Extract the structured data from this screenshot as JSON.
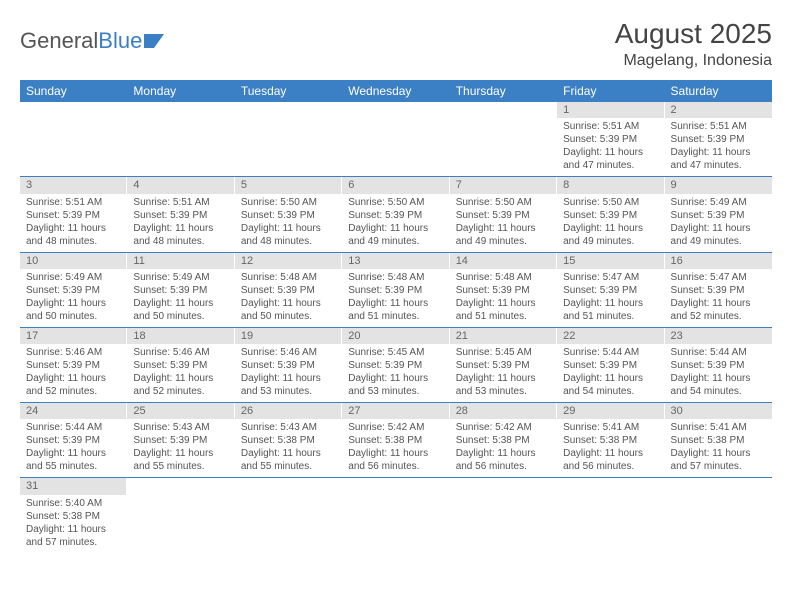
{
  "logo": {
    "text1": "General",
    "text2": "Blue"
  },
  "title": "August 2025",
  "location": "Magelang, Indonesia",
  "colors": {
    "header_bg": "#3b7fc4",
    "header_text": "#ffffff",
    "daynum_bg": "#e3e3e3",
    "text": "#555555",
    "divider": "#3b7fc4"
  },
  "day_headers": [
    "Sunday",
    "Monday",
    "Tuesday",
    "Wednesday",
    "Thursday",
    "Friday",
    "Saturday"
  ],
  "weeks": [
    [
      {
        "n": "",
        "sr": "",
        "ss": "",
        "dl": ""
      },
      {
        "n": "",
        "sr": "",
        "ss": "",
        "dl": ""
      },
      {
        "n": "",
        "sr": "",
        "ss": "",
        "dl": ""
      },
      {
        "n": "",
        "sr": "",
        "ss": "",
        "dl": ""
      },
      {
        "n": "",
        "sr": "",
        "ss": "",
        "dl": ""
      },
      {
        "n": "1",
        "sr": "Sunrise: 5:51 AM",
        "ss": "Sunset: 5:39 PM",
        "dl": "Daylight: 11 hours and 47 minutes."
      },
      {
        "n": "2",
        "sr": "Sunrise: 5:51 AM",
        "ss": "Sunset: 5:39 PM",
        "dl": "Daylight: 11 hours and 47 minutes."
      }
    ],
    [
      {
        "n": "3",
        "sr": "Sunrise: 5:51 AM",
        "ss": "Sunset: 5:39 PM",
        "dl": "Daylight: 11 hours and 48 minutes."
      },
      {
        "n": "4",
        "sr": "Sunrise: 5:51 AM",
        "ss": "Sunset: 5:39 PM",
        "dl": "Daylight: 11 hours and 48 minutes."
      },
      {
        "n": "5",
        "sr": "Sunrise: 5:50 AM",
        "ss": "Sunset: 5:39 PM",
        "dl": "Daylight: 11 hours and 48 minutes."
      },
      {
        "n": "6",
        "sr": "Sunrise: 5:50 AM",
        "ss": "Sunset: 5:39 PM",
        "dl": "Daylight: 11 hours and 49 minutes."
      },
      {
        "n": "7",
        "sr": "Sunrise: 5:50 AM",
        "ss": "Sunset: 5:39 PM",
        "dl": "Daylight: 11 hours and 49 minutes."
      },
      {
        "n": "8",
        "sr": "Sunrise: 5:50 AM",
        "ss": "Sunset: 5:39 PM",
        "dl": "Daylight: 11 hours and 49 minutes."
      },
      {
        "n": "9",
        "sr": "Sunrise: 5:49 AM",
        "ss": "Sunset: 5:39 PM",
        "dl": "Daylight: 11 hours and 49 minutes."
      }
    ],
    [
      {
        "n": "10",
        "sr": "Sunrise: 5:49 AM",
        "ss": "Sunset: 5:39 PM",
        "dl": "Daylight: 11 hours and 50 minutes."
      },
      {
        "n": "11",
        "sr": "Sunrise: 5:49 AM",
        "ss": "Sunset: 5:39 PM",
        "dl": "Daylight: 11 hours and 50 minutes."
      },
      {
        "n": "12",
        "sr": "Sunrise: 5:48 AM",
        "ss": "Sunset: 5:39 PM",
        "dl": "Daylight: 11 hours and 50 minutes."
      },
      {
        "n": "13",
        "sr": "Sunrise: 5:48 AM",
        "ss": "Sunset: 5:39 PM",
        "dl": "Daylight: 11 hours and 51 minutes."
      },
      {
        "n": "14",
        "sr": "Sunrise: 5:48 AM",
        "ss": "Sunset: 5:39 PM",
        "dl": "Daylight: 11 hours and 51 minutes."
      },
      {
        "n": "15",
        "sr": "Sunrise: 5:47 AM",
        "ss": "Sunset: 5:39 PM",
        "dl": "Daylight: 11 hours and 51 minutes."
      },
      {
        "n": "16",
        "sr": "Sunrise: 5:47 AM",
        "ss": "Sunset: 5:39 PM",
        "dl": "Daylight: 11 hours and 52 minutes."
      }
    ],
    [
      {
        "n": "17",
        "sr": "Sunrise: 5:46 AM",
        "ss": "Sunset: 5:39 PM",
        "dl": "Daylight: 11 hours and 52 minutes."
      },
      {
        "n": "18",
        "sr": "Sunrise: 5:46 AM",
        "ss": "Sunset: 5:39 PM",
        "dl": "Daylight: 11 hours and 52 minutes."
      },
      {
        "n": "19",
        "sr": "Sunrise: 5:46 AM",
        "ss": "Sunset: 5:39 PM",
        "dl": "Daylight: 11 hours and 53 minutes."
      },
      {
        "n": "20",
        "sr": "Sunrise: 5:45 AM",
        "ss": "Sunset: 5:39 PM",
        "dl": "Daylight: 11 hours and 53 minutes."
      },
      {
        "n": "21",
        "sr": "Sunrise: 5:45 AM",
        "ss": "Sunset: 5:39 PM",
        "dl": "Daylight: 11 hours and 53 minutes."
      },
      {
        "n": "22",
        "sr": "Sunrise: 5:44 AM",
        "ss": "Sunset: 5:39 PM",
        "dl": "Daylight: 11 hours and 54 minutes."
      },
      {
        "n": "23",
        "sr": "Sunrise: 5:44 AM",
        "ss": "Sunset: 5:39 PM",
        "dl": "Daylight: 11 hours and 54 minutes."
      }
    ],
    [
      {
        "n": "24",
        "sr": "Sunrise: 5:44 AM",
        "ss": "Sunset: 5:39 PM",
        "dl": "Daylight: 11 hours and 55 minutes."
      },
      {
        "n": "25",
        "sr": "Sunrise: 5:43 AM",
        "ss": "Sunset: 5:39 PM",
        "dl": "Daylight: 11 hours and 55 minutes."
      },
      {
        "n": "26",
        "sr": "Sunrise: 5:43 AM",
        "ss": "Sunset: 5:38 PM",
        "dl": "Daylight: 11 hours and 55 minutes."
      },
      {
        "n": "27",
        "sr": "Sunrise: 5:42 AM",
        "ss": "Sunset: 5:38 PM",
        "dl": "Daylight: 11 hours and 56 minutes."
      },
      {
        "n": "28",
        "sr": "Sunrise: 5:42 AM",
        "ss": "Sunset: 5:38 PM",
        "dl": "Daylight: 11 hours and 56 minutes."
      },
      {
        "n": "29",
        "sr": "Sunrise: 5:41 AM",
        "ss": "Sunset: 5:38 PM",
        "dl": "Daylight: 11 hours and 56 minutes."
      },
      {
        "n": "30",
        "sr": "Sunrise: 5:41 AM",
        "ss": "Sunset: 5:38 PM",
        "dl": "Daylight: 11 hours and 57 minutes."
      }
    ],
    [
      {
        "n": "31",
        "sr": "Sunrise: 5:40 AM",
        "ss": "Sunset: 5:38 PM",
        "dl": "Daylight: 11 hours and 57 minutes."
      },
      {
        "n": "",
        "sr": "",
        "ss": "",
        "dl": ""
      },
      {
        "n": "",
        "sr": "",
        "ss": "",
        "dl": ""
      },
      {
        "n": "",
        "sr": "",
        "ss": "",
        "dl": ""
      },
      {
        "n": "",
        "sr": "",
        "ss": "",
        "dl": ""
      },
      {
        "n": "",
        "sr": "",
        "ss": "",
        "dl": ""
      },
      {
        "n": "",
        "sr": "",
        "ss": "",
        "dl": ""
      }
    ]
  ]
}
